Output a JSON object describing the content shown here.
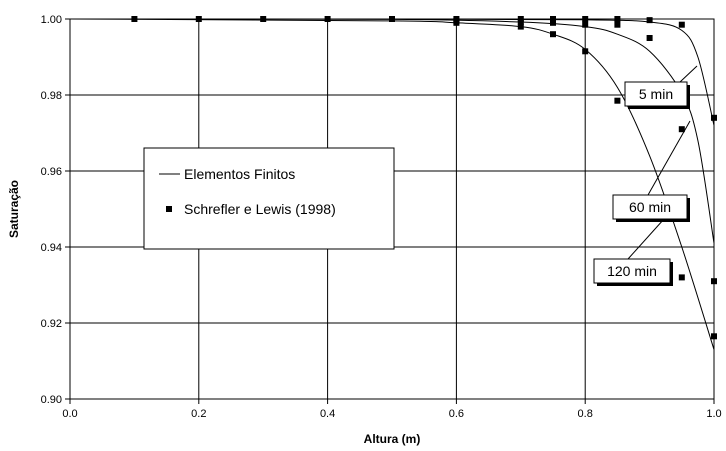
{
  "chart_data": {
    "type": "line",
    "xlabel": "Altura (m)",
    "ylabel": "Saturação",
    "xlim": [
      0,
      1
    ],
    "ylim": [
      0.9,
      1.0
    ],
    "xticks": [
      "0.0",
      "0.2",
      "0.4",
      "0.6",
      "0.8",
      "1.0"
    ],
    "yticks": [
      "0.90",
      "0.92",
      "0.94",
      "0.96",
      "0.98",
      "1.00"
    ],
    "grid": true,
    "legend": {
      "position": "left-middle",
      "entries": [
        "Elementos Finitos",
        "Schrefler e Lewis (1998)"
      ]
    },
    "series": [
      {
        "name": "Elementos Finitos",
        "label": "5 min",
        "line": [
          [
            0.0,
            1.0
          ],
          [
            0.5,
            1.0
          ],
          [
            0.8,
            0.9998
          ],
          [
            0.9,
            0.9992
          ],
          [
            0.95,
            0.997
          ],
          [
            0.975,
            0.99
          ],
          [
            1.0,
            0.972
          ]
        ],
        "points": [
          [
            0.1,
            1.0
          ],
          [
            0.2,
            1.0
          ],
          [
            0.3,
            1.0
          ],
          [
            0.4,
            1.0
          ],
          [
            0.5,
            1.0
          ],
          [
            0.6,
            1.0
          ],
          [
            0.7,
            1.0
          ],
          [
            0.75,
            1.0
          ],
          [
            0.8,
            1.0
          ],
          [
            0.85,
            1.0
          ],
          [
            0.9,
            0.9997
          ],
          [
            0.95,
            0.9985
          ],
          [
            1.0,
            0.974
          ]
        ]
      },
      {
        "name": "Elementos Finitos",
        "label": "60 min",
        "line": [
          [
            0.0,
            1.0
          ],
          [
            0.5,
            0.9999
          ],
          [
            0.7,
            0.9992
          ],
          [
            0.8,
            0.998
          ],
          [
            0.85,
            0.996
          ],
          [
            0.9,
            0.9915
          ],
          [
            0.95,
            0.9805
          ],
          [
            0.975,
            0.968
          ],
          [
            1.0,
            0.941
          ]
        ],
        "points": [
          [
            0.6,
            0.9995
          ],
          [
            0.7,
            0.9993
          ],
          [
            0.75,
            0.999
          ],
          [
            0.8,
            0.9985
          ],
          [
            0.85,
            0.9985
          ],
          [
            0.9,
            0.995
          ],
          [
            0.95,
            0.971
          ],
          [
            1.0,
            0.931
          ]
        ]
      },
      {
        "name": "Elementos Finitos",
        "label": "120 min",
        "line": [
          [
            0.0,
            1.0
          ],
          [
            0.5,
            0.9995
          ],
          [
            0.6,
            0.999
          ],
          [
            0.7,
            0.998
          ],
          [
            0.75,
            0.996
          ],
          [
            0.8,
            0.992
          ],
          [
            0.85,
            0.982
          ],
          [
            0.9,
            0.964
          ],
          [
            0.95,
            0.94
          ],
          [
            1.0,
            0.913
          ]
        ],
        "points": [
          [
            0.6,
            0.999
          ],
          [
            0.7,
            0.998
          ],
          [
            0.75,
            0.996
          ],
          [
            0.8,
            0.9915
          ],
          [
            0.85,
            0.9785
          ],
          [
            0.9,
            0.952
          ],
          [
            0.95,
            0.932
          ],
          [
            1.0,
            0.9165
          ]
        ]
      }
    ]
  }
}
